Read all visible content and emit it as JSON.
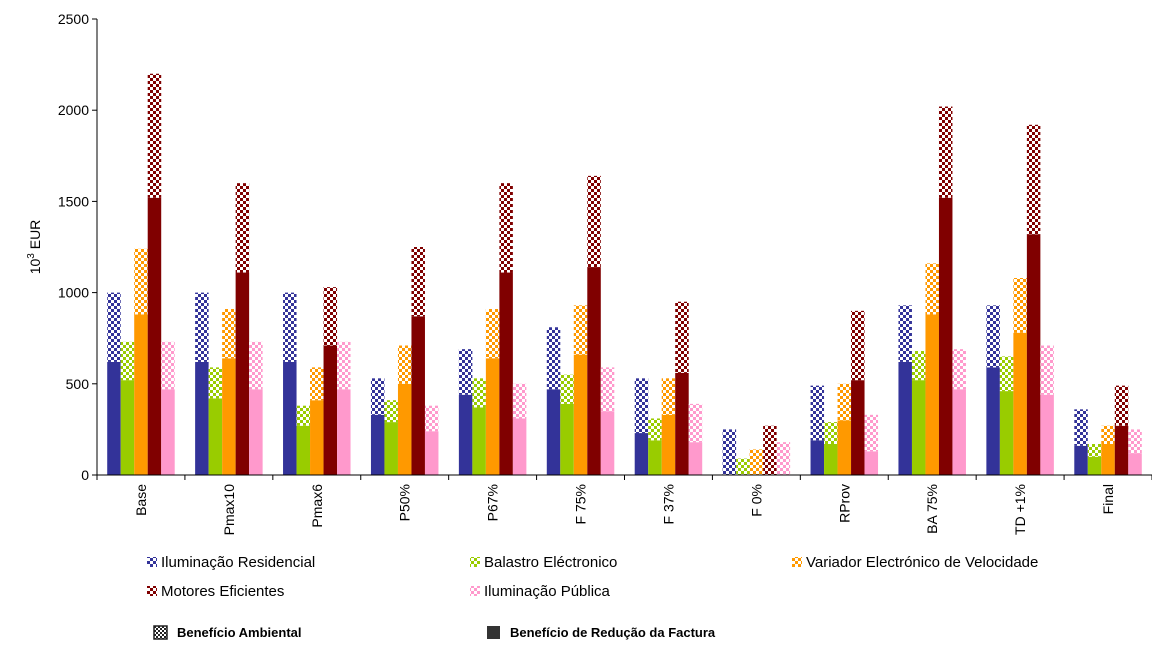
{
  "chart_data": {
    "type": "bar",
    "stacked_components": [
      "Benefício de Redução da Factura",
      "Benefício Ambiental"
    ],
    "ylabel_base": "10",
    "ylabel_exp": "3",
    "ylabel_unit": " EUR",
    "ylim": [
      0,
      2500
    ],
    "yticks": [
      "0",
      "500",
      "1000",
      "1500",
      "2000",
      "2500"
    ],
    "categories": [
      "Base",
      "Pmax10",
      "Pmax6",
      "P50%",
      "P67%",
      "F 75%",
      "F 37%",
      "F 0%",
      "RProv",
      "BA 75%",
      "TD +1%",
      "Final"
    ],
    "series": [
      {
        "name": "Iluminação Residencial",
        "color": "#333399",
        "reducao": [
          620,
          620,
          620,
          330,
          440,
          470,
          230,
          0,
          190,
          620,
          590,
          160
        ],
        "ambiental": [
          380,
          380,
          380,
          200,
          250,
          340,
          300,
          250,
          300,
          310,
          340,
          200
        ]
      },
      {
        "name": "Balastro Eléctronico",
        "color": "#99CC00",
        "reducao": [
          520,
          420,
          270,
          290,
          370,
          390,
          190,
          0,
          170,
          520,
          460,
          100
        ],
        "ambiental": [
          210,
          170,
          110,
          120,
          160,
          160,
          120,
          90,
          120,
          160,
          190,
          70
        ]
      },
      {
        "name": "Variador Electrónico de Velocidade",
        "color": "#FF9900",
        "reducao": [
          880,
          640,
          410,
          500,
          640,
          660,
          330,
          0,
          300,
          880,
          780,
          170
        ],
        "ambiental": [
          360,
          270,
          180,
          210,
          270,
          270,
          200,
          140,
          200,
          280,
          300,
          100
        ]
      },
      {
        "name": "Motores Eficientes",
        "color": "#800000",
        "reducao": [
          1520,
          1110,
          710,
          870,
          1110,
          1140,
          560,
          0,
          520,
          1520,
          1320,
          270
        ],
        "ambiental": [
          680,
          490,
          320,
          380,
          490,
          500,
          390,
          270,
          380,
          500,
          600,
          220
        ]
      },
      {
        "name": "Iluminação Pública",
        "color": "#FF99CC",
        "reducao": [
          470,
          470,
          470,
          240,
          310,
          350,
          180,
          0,
          130,
          470,
          440,
          120
        ],
        "ambiental": [
          260,
          260,
          260,
          140,
          190,
          240,
          210,
          180,
          200,
          220,
          270,
          130
        ]
      }
    ],
    "legend": [
      "Iluminação Residencial",
      "Balastro Eléctronico",
      "Variador Electrónico de Velocidade",
      "Motores Eficientes",
      "Iluminação Pública"
    ],
    "legend_components": [
      "Benefício Ambiental",
      "Benefício de Redução da Factura"
    ]
  }
}
